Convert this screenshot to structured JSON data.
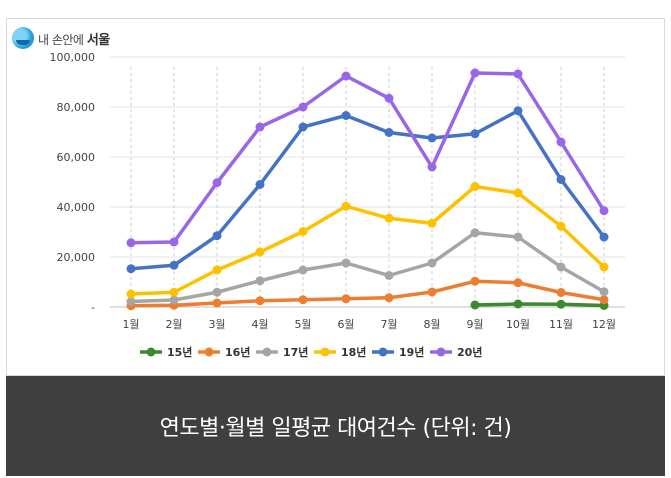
{
  "logo": {
    "small": "내 손안에",
    "big": "서울"
  },
  "caption": "연도별·월별 일평균 대여건수 (단위: 건)",
  "chart_data": {
    "type": "line",
    "categories": [
      "1월",
      "2월",
      "3월",
      "4월",
      "5월",
      "6월",
      "7월",
      "8월",
      "9월",
      "10월",
      "11월",
      "12월"
    ],
    "ylim": [
      0,
      100000
    ],
    "yticks": [
      0,
      20000,
      40000,
      60000,
      80000,
      100000
    ],
    "ytick_labels": [
      "-",
      "20,000",
      "40,000",
      "60,000",
      "80,000",
      "100,000"
    ],
    "grid": true,
    "legend": "bottom",
    "series": [
      {
        "name": "15년",
        "color": "#3a8a2e",
        "values": [
          null,
          null,
          null,
          null,
          null,
          null,
          null,
          null,
          800,
          1200,
          1100,
          600
        ]
      },
      {
        "name": "16년",
        "color": "#ed7d31",
        "values": [
          500,
          700,
          1600,
          2500,
          2900,
          3300,
          3700,
          6000,
          10300,
          9700,
          5800,
          2900
        ]
      },
      {
        "name": "17년",
        "color": "#a5a5a5",
        "values": [
          2200,
          2800,
          5900,
          10500,
          14800,
          17600,
          12600,
          17600,
          29700,
          28000,
          16000,
          6100
        ]
      },
      {
        "name": "18년",
        "color": "#ffc000",
        "values": [
          5200,
          5900,
          14800,
          22000,
          30200,
          40300,
          35500,
          33500,
          48200,
          45600,
          32300,
          16000
        ]
      },
      {
        "name": "19년",
        "color": "#4472c4",
        "values": [
          15300,
          16700,
          28500,
          49000,
          72000,
          76600,
          69800,
          67600,
          69300,
          78500,
          51000,
          28000
        ]
      },
      {
        "name": "20년",
        "color": "#9966e8",
        "values": [
          25700,
          26000,
          49700,
          72000,
          80000,
          92400,
          83500,
          56000,
          93600,
          93200,
          66000,
          38500
        ]
      }
    ]
  }
}
